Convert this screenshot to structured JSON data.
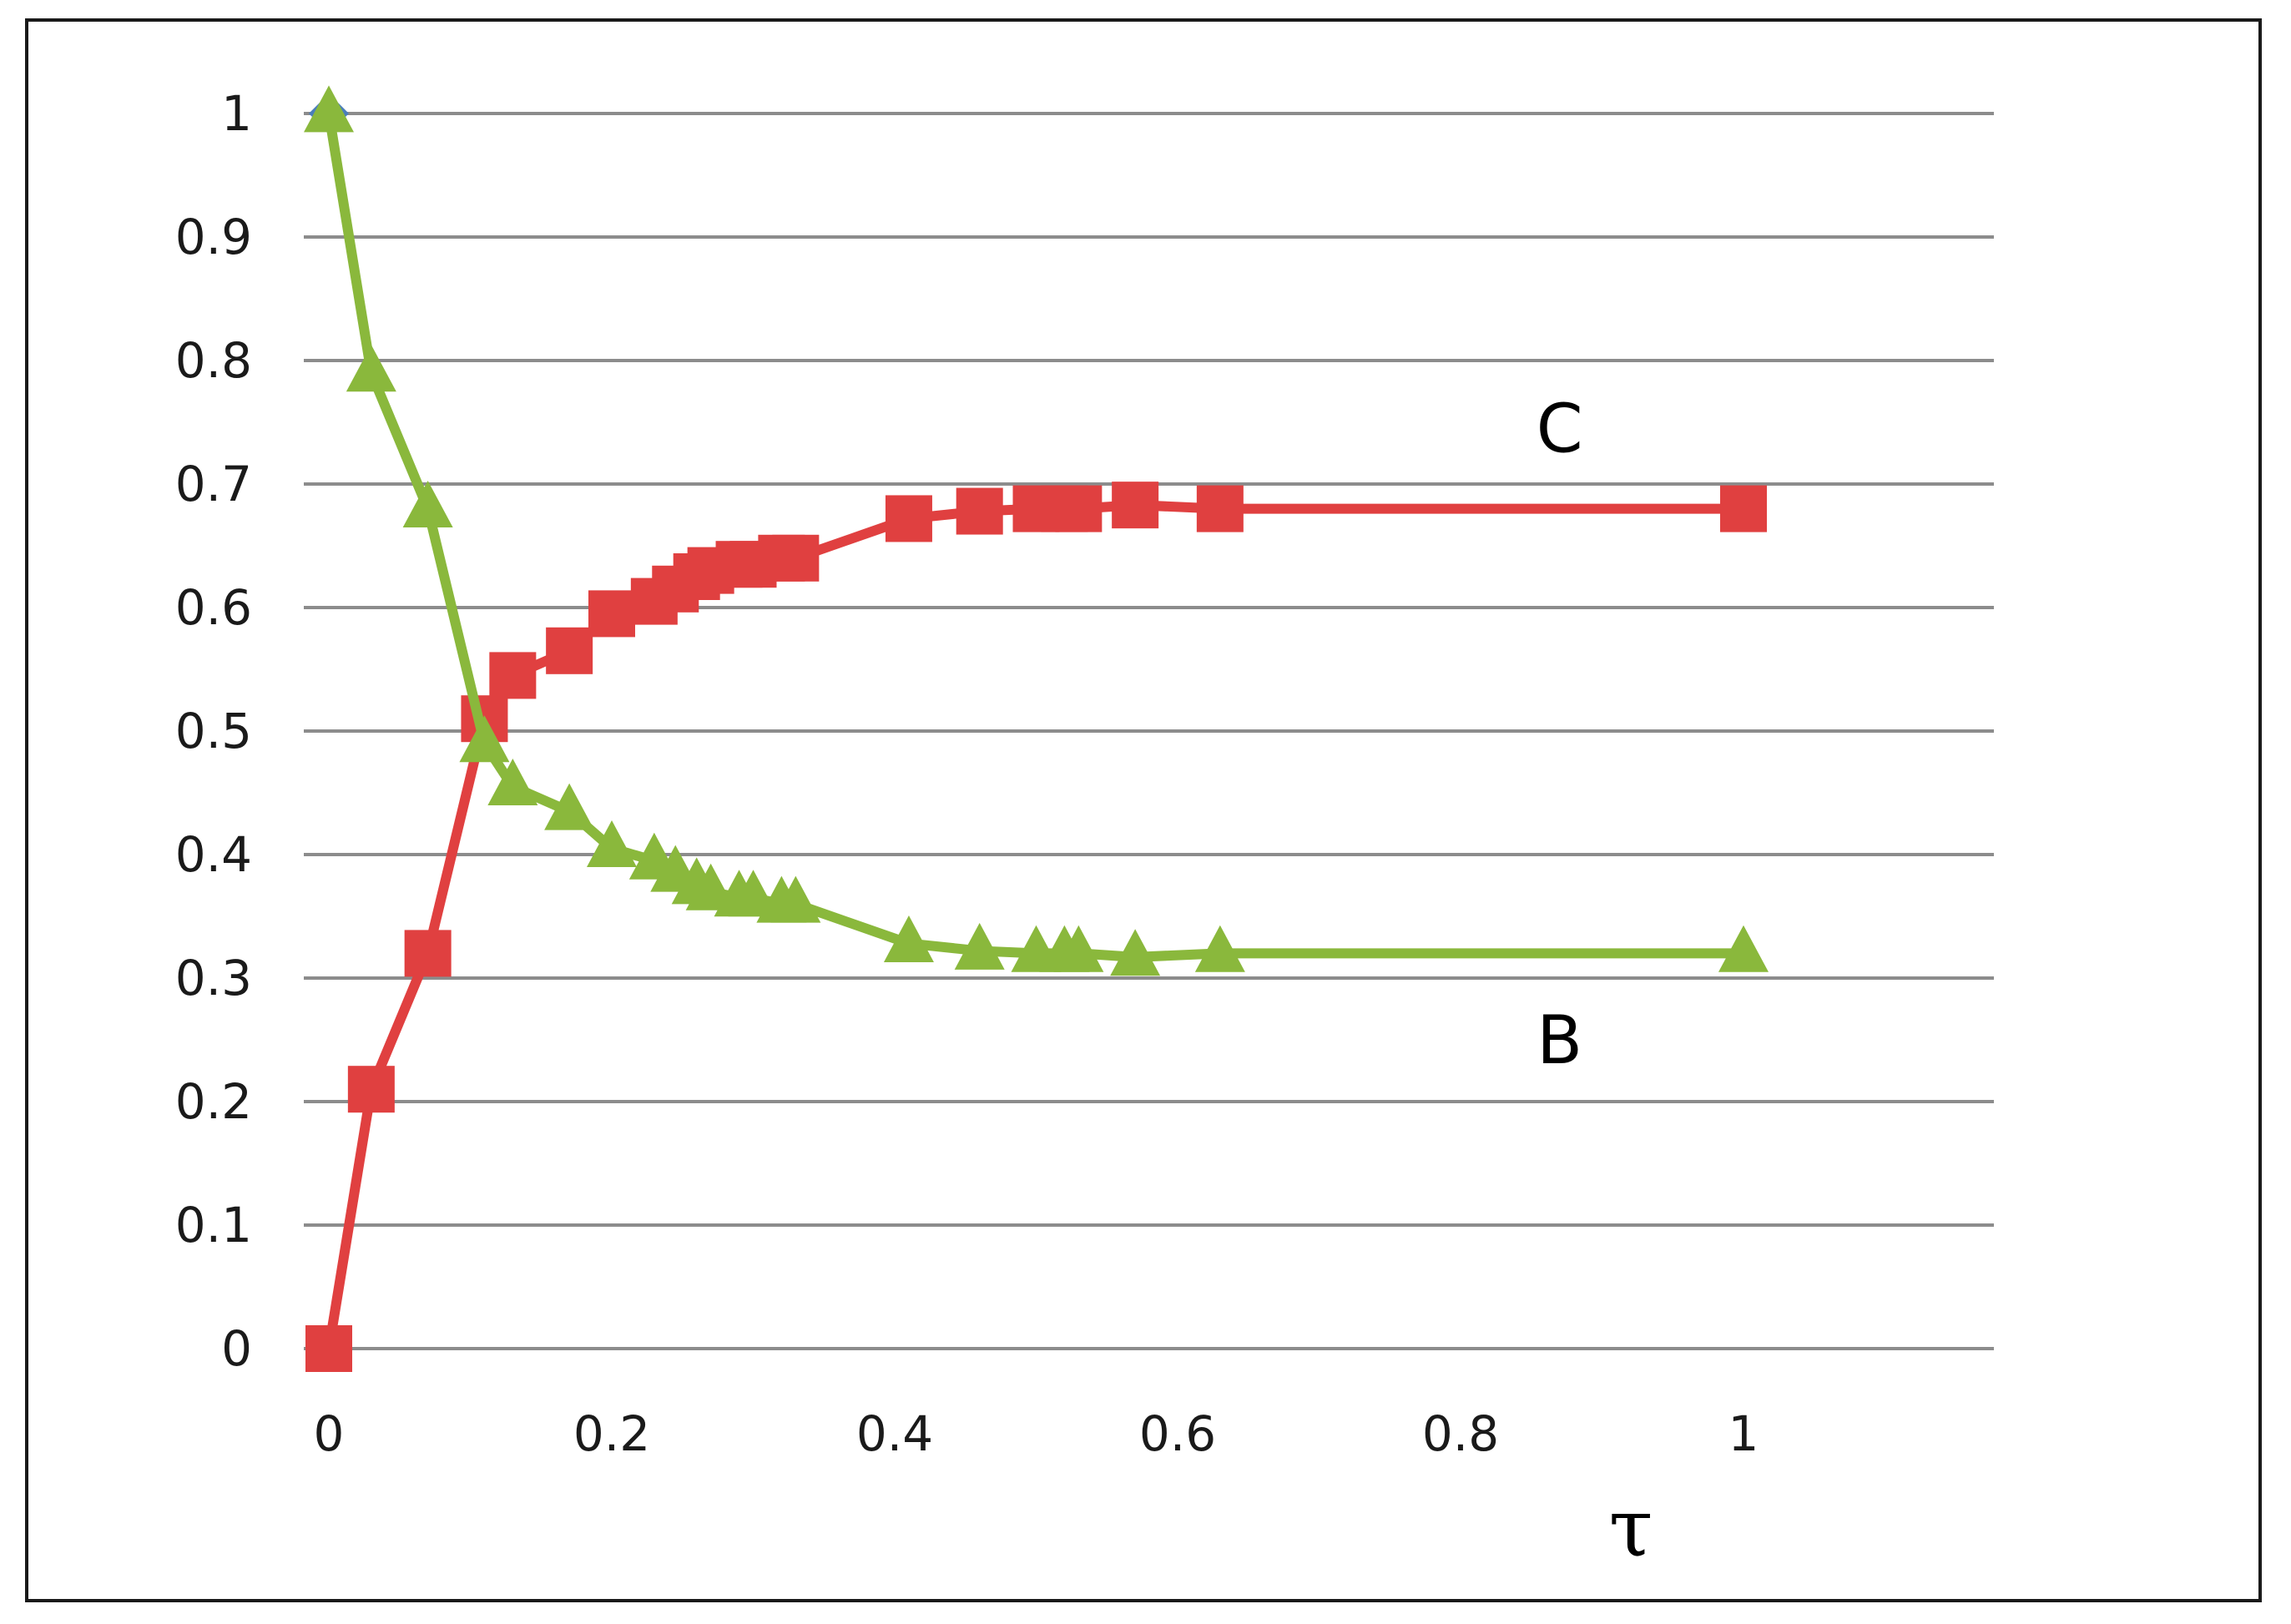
{
  "chart_data": {
    "type": "line",
    "xlabel": "τ",
    "ylabel": "",
    "xlim": [
      0,
      1.17
    ],
    "ylim": [
      0,
      1
    ],
    "grid": "horizontal",
    "x_ticks": [
      "0",
      "0.2",
      "0.4",
      "0.6",
      "0.8",
      "1"
    ],
    "y_ticks": [
      "0",
      "0.1",
      "0.2",
      "0.3",
      "0.4",
      "0.5",
      "0.6",
      "0.7",
      "0.8",
      "0.9",
      "1"
    ],
    "series": [
      {
        "name": "C",
        "color": "#e04040",
        "marker": "square",
        "x": [
          0,
          0.03,
          0.07,
          0.11,
          0.13,
          0.17,
          0.2,
          0.23,
          0.245,
          0.26,
          0.27,
          0.29,
          0.3,
          0.32,
          0.33,
          0.41,
          0.46,
          0.5,
          0.52,
          0.53,
          0.57,
          0.63,
          1.0
        ],
        "values": [
          0,
          0.21,
          0.32,
          0.51,
          0.545,
          0.565,
          0.595,
          0.605,
          0.615,
          0.625,
          0.63,
          0.635,
          0.635,
          0.64,
          0.64,
          0.672,
          0.678,
          0.68,
          0.68,
          0.68,
          0.683,
          0.68,
          0.68
        ]
      },
      {
        "name": "B",
        "color": "#8ab83c",
        "marker": "triangle",
        "x": [
          0,
          0.03,
          0.07,
          0.11,
          0.13,
          0.17,
          0.2,
          0.23,
          0.245,
          0.26,
          0.27,
          0.29,
          0.3,
          0.32,
          0.33,
          0.41,
          0.46,
          0.5,
          0.52,
          0.53,
          0.57,
          0.63,
          1.0
        ],
        "values": [
          1.0,
          0.79,
          0.68,
          0.49,
          0.455,
          0.435,
          0.405,
          0.395,
          0.385,
          0.375,
          0.37,
          0.365,
          0.365,
          0.36,
          0.36,
          0.328,
          0.322,
          0.32,
          0.32,
          0.32,
          0.317,
          0.32,
          0.32
        ]
      }
    ],
    "annotations": [
      {
        "text": "C",
        "x": 0.87,
        "y": 0.745
      },
      {
        "text": "B",
        "x": 0.87,
        "y": 0.25
      }
    ],
    "extra_point": {
      "x": 0,
      "y": 1,
      "color": "#4a7ebb",
      "marker": "diamond"
    }
  }
}
